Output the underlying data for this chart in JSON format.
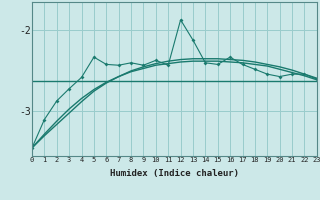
{
  "title": "",
  "xlabel": "Humidex (Indice chaleur)",
  "background_color": "#cce8e8",
  "grid_color": "#99cccc",
  "line_color": "#1a7a6e",
  "x": [
    0,
    1,
    2,
    3,
    4,
    5,
    6,
    7,
    8,
    9,
    10,
    11,
    12,
    13,
    14,
    15,
    16,
    17,
    18,
    19,
    20,
    21,
    22,
    23
  ],
  "series_main": [
    -3.45,
    -3.1,
    -2.87,
    -2.72,
    -2.58,
    -2.33,
    -2.42,
    -2.43,
    -2.4,
    -2.43,
    -2.37,
    -2.43,
    -1.87,
    -2.12,
    -2.4,
    -2.42,
    -2.33,
    -2.42,
    -2.48,
    -2.54,
    -2.57,
    -2.54,
    -2.54,
    -2.6
  ],
  "series_flat": [
    -2.62,
    -2.62,
    -2.62,
    -2.62,
    -2.62,
    -2.62,
    -2.62,
    -2.62,
    -2.62,
    -2.62,
    -2.62,
    -2.62,
    -2.62,
    -2.62,
    -2.62,
    -2.62,
    -2.62,
    -2.62,
    -2.62,
    -2.62,
    -2.62,
    -2.62,
    -2.62,
    -2.62
  ],
  "series_trend1": [
    -3.45,
    -3.3,
    -3.16,
    -3.02,
    -2.88,
    -2.75,
    -2.65,
    -2.57,
    -2.5,
    -2.45,
    -2.41,
    -2.38,
    -2.36,
    -2.35,
    -2.35,
    -2.35,
    -2.36,
    -2.37,
    -2.39,
    -2.42,
    -2.45,
    -2.49,
    -2.54,
    -2.59
  ],
  "series_trend2": [
    -3.45,
    -3.28,
    -3.12,
    -2.97,
    -2.84,
    -2.73,
    -2.64,
    -2.57,
    -2.51,
    -2.47,
    -2.43,
    -2.41,
    -2.39,
    -2.38,
    -2.38,
    -2.38,
    -2.39,
    -2.4,
    -2.42,
    -2.44,
    -2.48,
    -2.52,
    -2.56,
    -2.61
  ],
  "ylim": [
    -3.55,
    -1.65
  ],
  "yticks": [
    -3,
    -2
  ],
  "xlim": [
    0,
    23
  ]
}
